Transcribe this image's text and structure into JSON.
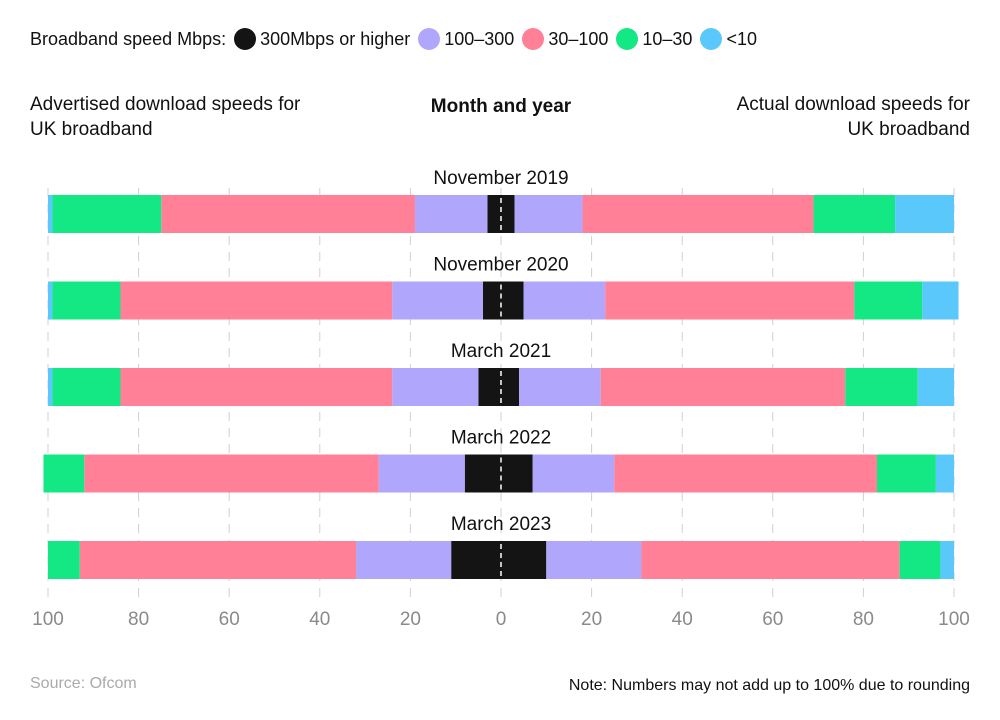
{
  "chart_data": {
    "type": "diverging-bar",
    "legend_title": "Broadband speed Mbps:",
    "center_label": "Month and year",
    "left_label": "Advertised download speeds for UK broadband",
    "right_label": "Actual download speeds for UK broadband",
    "categories": [
      "November 2019",
      "November 2020",
      "March 2021",
      "March 2022",
      "March 2023"
    ],
    "series": [
      {
        "name": "300Mbps or higher",
        "color": "#141414",
        "advertised": [
          3,
          4,
          5,
          8,
          11
        ],
        "actual": [
          3,
          5,
          4,
          7,
          10
        ]
      },
      {
        "name": "100–300",
        "color": "#b0a7fc",
        "advertised": [
          16,
          20,
          19,
          19,
          21
        ],
        "actual": [
          15,
          18,
          18,
          18,
          21
        ]
      },
      {
        "name": "30–100",
        "color": "#ff8097",
        "advertised": [
          56,
          60,
          60,
          65,
          61
        ],
        "actual": [
          51,
          55,
          54,
          58,
          57
        ]
      },
      {
        "name": "10–30",
        "color": "#13e884",
        "advertised": [
          24,
          15,
          15,
          9,
          7
        ],
        "actual": [
          18,
          15,
          16,
          13,
          9
        ]
      },
      {
        "name": "<10",
        "color": "#5ac8fa",
        "advertised": [
          1,
          1,
          1,
          0,
          0
        ],
        "actual": [
          13,
          8,
          8,
          4,
          3
        ]
      }
    ],
    "xlim": [
      -100,
      100
    ],
    "xticks": [
      {
        "value": -100,
        "label": "100"
      },
      {
        "value": -80,
        "label": "80"
      },
      {
        "value": -60,
        "label": "60"
      },
      {
        "value": -40,
        "label": "40"
      },
      {
        "value": -20,
        "label": "20"
      },
      0,
      20,
      40,
      60,
      80,
      100
    ],
    "grid": true,
    "source": "Source: Ofcom",
    "note": "Note: Numbers may not add up to 100% due to rounding"
  }
}
